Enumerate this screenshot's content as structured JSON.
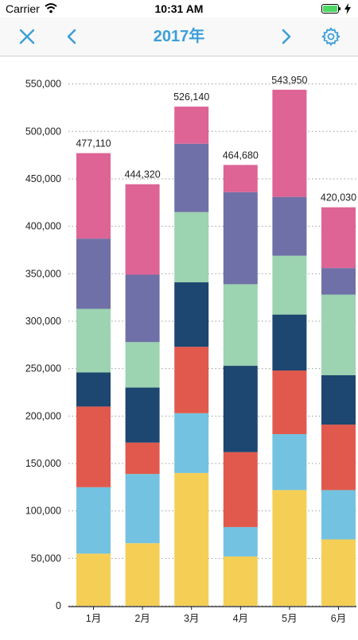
{
  "status_bar": {
    "carrier": "Carrier",
    "time": "10:31 AM"
  },
  "nav": {
    "title": "2017年"
  },
  "icons": {
    "close": "close-icon",
    "prev": "chevron-left-icon",
    "next": "chevron-right-icon",
    "settings": "gear-icon"
  },
  "colors": {
    "accent": "#3b9fd9",
    "segments": [
      "#f5cf55",
      "#73c2e1",
      "#e1594c",
      "#1d4670",
      "#9cd3b1",
      "#6f70a7",
      "#dd6495"
    ]
  },
  "chart_data": {
    "type": "bar",
    "stacked": true,
    "categories": [
      "1月",
      "2月",
      "3月",
      "4月",
      "5月",
      "6月"
    ],
    "totals": [
      "477,110",
      "444,320",
      "526,140",
      "464,680",
      "543,950",
      "420,030"
    ],
    "series": [
      {
        "values": [
          55000,
          66000,
          140000,
          52000,
          122000,
          70000
        ]
      },
      {
        "values": [
          70000,
          73000,
          63000,
          31000,
          59000,
          52000
        ]
      },
      {
        "values": [
          85000,
          33000,
          70000,
          79000,
          67000,
          69000
        ]
      },
      {
        "values": [
          36000,
          58000,
          68000,
          91000,
          59000,
          52000
        ]
      },
      {
        "values": [
          67000,
          48000,
          74000,
          86000,
          62000,
          85000
        ]
      },
      {
        "values": [
          74000,
          71000,
          72000,
          97000,
          62000,
          28000
        ]
      },
      {
        "values": [
          90110,
          95320,
          39140,
          28680,
          112950,
          64030
        ]
      }
    ],
    "yticks": [
      "0",
      "50,000",
      "100,000",
      "150,000",
      "200,000",
      "250,000",
      "300,000",
      "350,000",
      "400,000",
      "450,000",
      "500,000",
      "550,000"
    ],
    "ylim": [
      0,
      560000
    ],
    "grid": true,
    "legend": "none"
  }
}
